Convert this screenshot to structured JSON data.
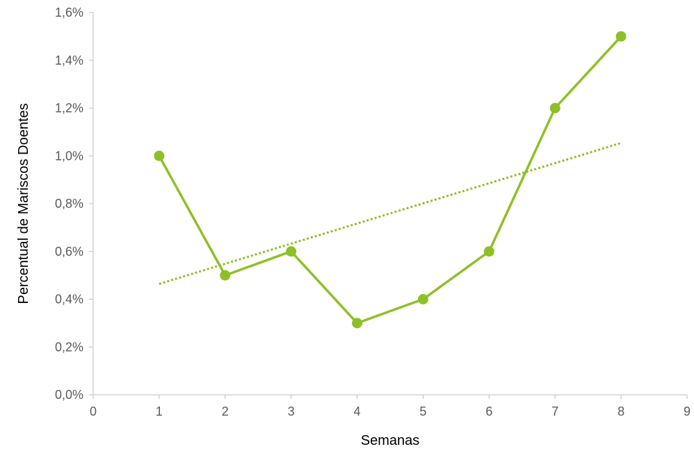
{
  "chart_data": {
    "type": "line",
    "title": "",
    "xlabel": "Semanas",
    "ylabel": "Percentual de Mariscos Doentes",
    "xlim": [
      0,
      9
    ],
    "ylim": [
      0,
      1.6
    ],
    "x_ticks": [
      "0",
      "1",
      "2",
      "3",
      "4",
      "5",
      "6",
      "7",
      "8",
      "9"
    ],
    "y_ticks": [
      "0,0%",
      "0,2%",
      "0,4%",
      "0,6%",
      "0,8%",
      "1,0%",
      "1,2%",
      "1,4%",
      "1,6%"
    ],
    "grid": false,
    "legend": "none",
    "series": [
      {
        "x": [
          1,
          2,
          3,
          4,
          5,
          6,
          7,
          8
        ],
        "values": [
          1.0,
          0.5,
          0.6,
          0.3,
          0.4,
          0.6,
          1.2,
          1.5
        ],
        "color": "#8dc026",
        "marker": "circle"
      }
    ],
    "trendline": {
      "kind": "linear",
      "style": "dotted",
      "color": "#8dc026",
      "x": [
        1,
        8
      ],
      "values": [
        0.464,
        1.054
      ]
    }
  }
}
